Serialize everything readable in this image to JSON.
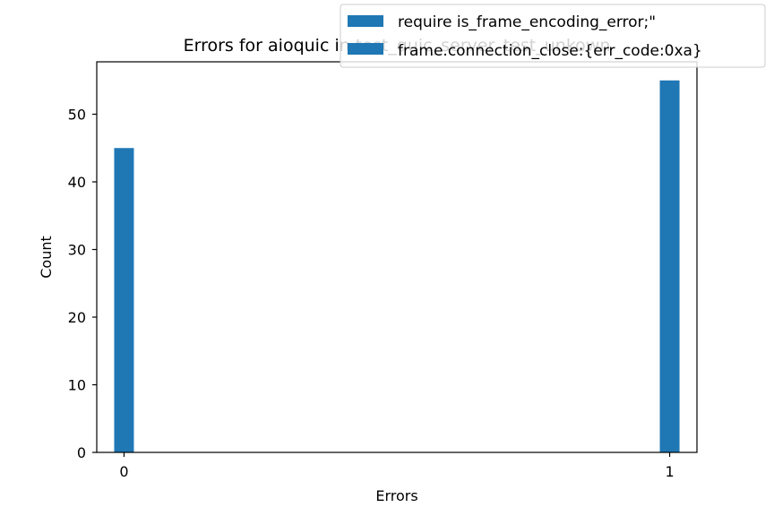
{
  "chart_data": {
    "type": "bar",
    "title": "Errors for aioquic in test_quic_server_test_unkown",
    "xlabel": "Errors",
    "ylabel": "Count",
    "x_ticks": [
      "0",
      "1"
    ],
    "y_ticks": [
      "0",
      "10",
      "20",
      "30",
      "40",
      "50"
    ],
    "xlim": [
      -0.05,
      1.05
    ],
    "ylim": [
      0,
      57.75
    ],
    "grid": false,
    "legend_placement": "top-right",
    "series": [
      {
        "name": "require is_frame_encoding_error;\"",
        "color": "#1f77b4",
        "x": [
          0
        ],
        "values": [
          45
        ]
      },
      {
        "name": "frame.connection_close:{err_code:0xa}",
        "color": "#1f77b4",
        "x": [
          1
        ],
        "values": [
          55
        ]
      }
    ]
  }
}
